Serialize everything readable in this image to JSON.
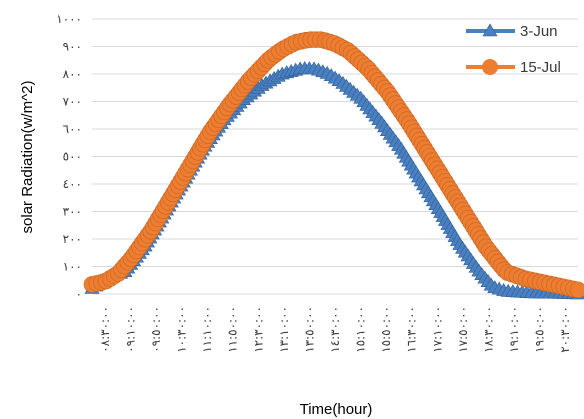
{
  "chart_data": {
    "type": "line",
    "title": "",
    "xlabel": "Time(hour)",
    "ylabel": "solar Radiation(w/m^2)",
    "ylim": [
      0,
      1000
    ],
    "y_ticks": [
      0,
      100,
      200,
      300,
      400,
      500,
      600,
      700,
      800,
      900,
      1000
    ],
    "y_tick_labels": [
      "٠",
      "١٠٠",
      "٢٠٠",
      "٣٠٠",
      "٤٠٠",
      "٥٠٠",
      "٦٠٠",
      "٧٠٠",
      "٨٠٠",
      "٩٠٠",
      "١٠٠٠"
    ],
    "x_tick_labels": [
      "٠٨:٣٠:٠٠",
      "٠٩:١٠:٠٠",
      "٠٩:٥٠:٠٠",
      "١٠:٣٠:٠٠",
      "١١:١٠:٠٠",
      "١١:٥٠:٠٠",
      "١٢:٣٠:٠٠",
      "١٣:١٠:٠٠",
      "١٣:٥٠:٠٠",
      "١٤:٣٠:٠٠",
      "١٥:١٠:٠٠",
      "١٥:٥٠:٠٠",
      "١٦:٣٠:٠٠",
      "١٧:١٠:٠٠",
      "١٧:٥٠:٠٠",
      "١٨:٣٠:٠٠",
      "١٩:١٠:٠٠",
      "١٩:٥٠:٠٠",
      "٢٠:٣٠:٠٠"
    ],
    "x_range_hours": [
      8.5,
      20.83
    ],
    "grid": "horizontal",
    "legend_position": "top-right",
    "series": [
      {
        "name": "3-Jun",
        "color": "#4a7fc0",
        "marker": "triangle",
        "points": [
          [
            8.5,
            20
          ],
          [
            9.0,
            65
          ],
          [
            9.33,
            80
          ],
          [
            9.83,
            170
          ],
          [
            10.33,
            290
          ],
          [
            10.83,
            410
          ],
          [
            11.33,
            530
          ],
          [
            11.83,
            630
          ],
          [
            12.33,
            705
          ],
          [
            12.83,
            760
          ],
          [
            13.33,
            800
          ],
          [
            13.83,
            820
          ],
          [
            14.17,
            818
          ],
          [
            14.5,
            800
          ],
          [
            14.83,
            770
          ],
          [
            15.33,
            710
          ],
          [
            15.83,
            625
          ],
          [
            16.33,
            530
          ],
          [
            16.83,
            415
          ],
          [
            17.33,
            300
          ],
          [
            17.83,
            180
          ],
          [
            18.33,
            80
          ],
          [
            18.67,
            25
          ],
          [
            19.0,
            10
          ],
          [
            19.5,
            5
          ],
          [
            20.0,
            3
          ],
          [
            20.5,
            2
          ],
          [
            20.83,
            0
          ]
        ]
      },
      {
        "name": "15-Jul",
        "color": "#ed7d31",
        "marker": "circle",
        "points": [
          [
            8.5,
            35
          ],
          [
            8.83,
            45
          ],
          [
            9.17,
            75
          ],
          [
            9.5,
            130
          ],
          [
            10.0,
            230
          ],
          [
            10.5,
            350
          ],
          [
            11.0,
            470
          ],
          [
            11.5,
            590
          ],
          [
            12.0,
            690
          ],
          [
            12.5,
            780
          ],
          [
            13.0,
            855
          ],
          [
            13.33,
            890
          ],
          [
            13.67,
            915
          ],
          [
            14.0,
            925
          ],
          [
            14.33,
            925
          ],
          [
            14.67,
            910
          ],
          [
            15.0,
            885
          ],
          [
            15.5,
            820
          ],
          [
            16.0,
            735
          ],
          [
            16.5,
            630
          ],
          [
            17.0,
            515
          ],
          [
            17.5,
            400
          ],
          [
            18.0,
            285
          ],
          [
            18.5,
            170
          ],
          [
            19.0,
            80
          ],
          [
            19.5,
            55
          ],
          [
            20.0,
            40
          ],
          [
            20.5,
            25
          ],
          [
            20.83,
            15
          ]
        ]
      }
    ]
  }
}
